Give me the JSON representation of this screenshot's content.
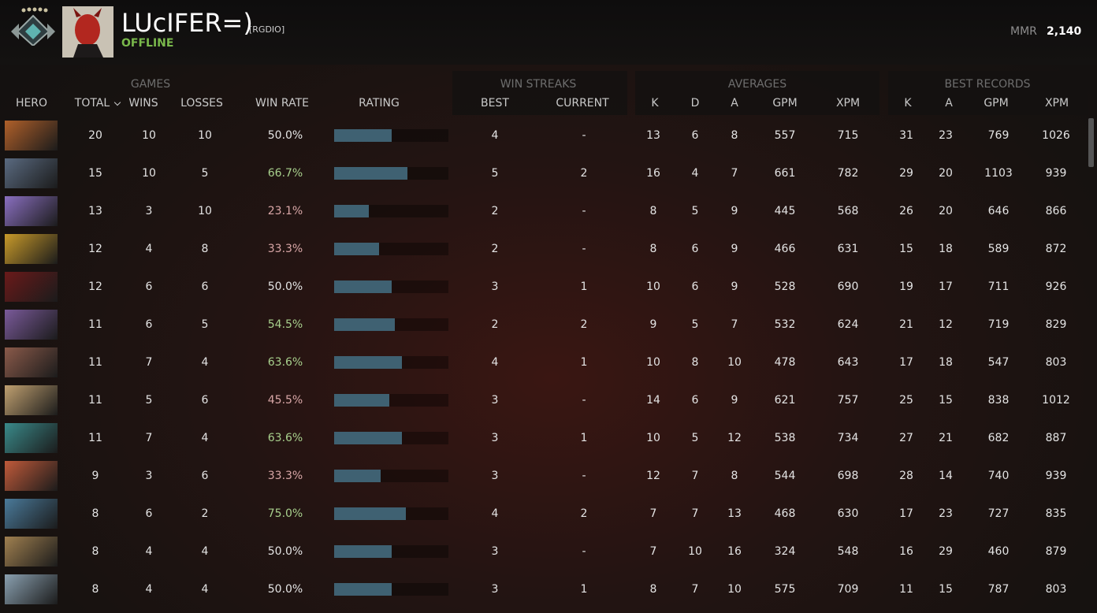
{
  "header": {
    "player_name": "LUcIFER=)",
    "team_tag": "[RGDIO]",
    "status": "OFFLINE",
    "mmr_label": "MMR",
    "mmr": "2,140"
  },
  "table": {
    "groups": [
      "GAMES",
      "WIN STREAKS",
      "AVERAGES",
      "BEST RECORDS"
    ],
    "columns": [
      "HERO",
      "TOTAL",
      "WINS",
      "LOSSES",
      "WIN RATE",
      "RATING",
      "BEST",
      "CURRENT",
      "K",
      "D",
      "A",
      "GPM",
      "XPM",
      "K",
      "A",
      "GPM",
      "XPM"
    ],
    "rows": [
      {
        "total": 20,
        "wins": 10,
        "losses": 10,
        "win_rate": "50.0%",
        "rating": 0.5,
        "streak_best": 4,
        "streak_current": "-",
        "avg_k": 13,
        "avg_d": 6,
        "avg_a": 8,
        "avg_gpm": 557,
        "avg_xpm": 715,
        "best_k": 31,
        "best_a": 23,
        "best_gpm": 769,
        "best_xpm": 1026
      },
      {
        "total": 15,
        "wins": 10,
        "losses": 5,
        "win_rate": "66.7%",
        "rating": 0.64,
        "streak_best": 5,
        "streak_current": 2,
        "avg_k": 16,
        "avg_d": 4,
        "avg_a": 7,
        "avg_gpm": 661,
        "avg_xpm": 782,
        "best_k": 29,
        "best_a": 20,
        "best_gpm": 1103,
        "best_xpm": 939
      },
      {
        "total": 13,
        "wins": 3,
        "losses": 10,
        "win_rate": "23.1%",
        "rating": 0.3,
        "streak_best": 2,
        "streak_current": "-",
        "avg_k": 8,
        "avg_d": 5,
        "avg_a": 9,
        "avg_gpm": 445,
        "avg_xpm": 568,
        "best_k": 26,
        "best_a": 20,
        "best_gpm": 646,
        "best_xpm": 866
      },
      {
        "total": 12,
        "wins": 4,
        "losses": 8,
        "win_rate": "33.3%",
        "rating": 0.39,
        "streak_best": 2,
        "streak_current": "-",
        "avg_k": 8,
        "avg_d": 6,
        "avg_a": 9,
        "avg_gpm": 466,
        "avg_xpm": 631,
        "best_k": 15,
        "best_a": 18,
        "best_gpm": 589,
        "best_xpm": 872
      },
      {
        "total": 12,
        "wins": 6,
        "losses": 6,
        "win_rate": "50.0%",
        "rating": 0.5,
        "streak_best": 3,
        "streak_current": 1,
        "avg_k": 10,
        "avg_d": 6,
        "avg_a": 9,
        "avg_gpm": 528,
        "avg_xpm": 690,
        "best_k": 19,
        "best_a": 17,
        "best_gpm": 711,
        "best_xpm": 926
      },
      {
        "total": 11,
        "wins": 6,
        "losses": 5,
        "win_rate": "54.5%",
        "rating": 0.53,
        "streak_best": 2,
        "streak_current": 2,
        "avg_k": 9,
        "avg_d": 5,
        "avg_a": 7,
        "avg_gpm": 532,
        "avg_xpm": 624,
        "best_k": 21,
        "best_a": 12,
        "best_gpm": 719,
        "best_xpm": 829
      },
      {
        "total": 11,
        "wins": 7,
        "losses": 4,
        "win_rate": "63.6%",
        "rating": 0.59,
        "streak_best": 4,
        "streak_current": 1,
        "avg_k": 10,
        "avg_d": 8,
        "avg_a": 10,
        "avg_gpm": 478,
        "avg_xpm": 643,
        "best_k": 17,
        "best_a": 18,
        "best_gpm": 547,
        "best_xpm": 803
      },
      {
        "total": 11,
        "wins": 5,
        "losses": 6,
        "win_rate": "45.5%",
        "rating": 0.48,
        "streak_best": 3,
        "streak_current": "-",
        "avg_k": 14,
        "avg_d": 6,
        "avg_a": 9,
        "avg_gpm": 621,
        "avg_xpm": 757,
        "best_k": 25,
        "best_a": 15,
        "best_gpm": 838,
        "best_xpm": 1012
      },
      {
        "total": 11,
        "wins": 7,
        "losses": 4,
        "win_rate": "63.6%",
        "rating": 0.59,
        "streak_best": 3,
        "streak_current": 1,
        "avg_k": 10,
        "avg_d": 5,
        "avg_a": 12,
        "avg_gpm": 538,
        "avg_xpm": 734,
        "best_k": 27,
        "best_a": 21,
        "best_gpm": 682,
        "best_xpm": 887
      },
      {
        "total": 9,
        "wins": 3,
        "losses": 6,
        "win_rate": "33.3%",
        "rating": 0.41,
        "streak_best": 3,
        "streak_current": "-",
        "avg_k": 12,
        "avg_d": 7,
        "avg_a": 8,
        "avg_gpm": 544,
        "avg_xpm": 698,
        "best_k": 28,
        "best_a": 14,
        "best_gpm": 740,
        "best_xpm": 939
      },
      {
        "total": 8,
        "wins": 6,
        "losses": 2,
        "win_rate": "75.0%",
        "rating": 0.63,
        "streak_best": 4,
        "streak_current": 2,
        "avg_k": 7,
        "avg_d": 7,
        "avg_a": 13,
        "avg_gpm": 468,
        "avg_xpm": 630,
        "best_k": 17,
        "best_a": 23,
        "best_gpm": 727,
        "best_xpm": 835
      },
      {
        "total": 8,
        "wins": 4,
        "losses": 4,
        "win_rate": "50.0%",
        "rating": 0.5,
        "streak_best": 3,
        "streak_current": "-",
        "avg_k": 7,
        "avg_d": 10,
        "avg_a": 16,
        "avg_gpm": 324,
        "avg_xpm": 548,
        "best_k": 16,
        "best_a": 29,
        "best_gpm": 460,
        "best_xpm": 879
      },
      {
        "total": 8,
        "wins": 4,
        "losses": 4,
        "win_rate": "50.0%",
        "rating": 0.5,
        "streak_best": 3,
        "streak_current": 1,
        "avg_k": 8,
        "avg_d": 7,
        "avg_a": 10,
        "avg_gpm": 575,
        "avg_xpm": 709,
        "best_k": 11,
        "best_a": 15,
        "best_gpm": 787,
        "best_xpm": 803
      }
    ]
  }
}
